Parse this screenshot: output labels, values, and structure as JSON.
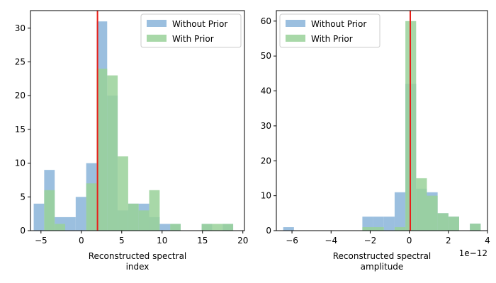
{
  "chart_data": [
    {
      "type": "histogram",
      "xlabel_lines": [
        "Reconstructed spectral",
        "index"
      ],
      "xlim": [
        -6.3,
        20.2
      ],
      "ylim": [
        0,
        32.6
      ],
      "xticks": [
        -5,
        0,
        5,
        10,
        15,
        20
      ],
      "yticks": [
        0,
        5,
        10,
        15,
        20,
        25,
        30
      ],
      "reference_line": {
        "x": 2.0,
        "color": "#e8201a"
      },
      "legend": {
        "position": "top-right",
        "entries": [
          "Without Prior",
          "With Prior"
        ]
      },
      "series": [
        {
          "name": "Without Prior",
          "color": "#8ab4d9",
          "bins": [
            {
              "x0": -5.9,
              "x1": -4.6,
              "count": 4
            },
            {
              "x0": -4.6,
              "x1": -3.3,
              "count": 9
            },
            {
              "x0": -3.3,
              "x1": -2.0,
              "count": 2
            },
            {
              "x0": -2.0,
              "x1": -0.7,
              "count": 2
            },
            {
              "x0": -0.7,
              "x1": 0.6,
              "count": 5
            },
            {
              "x0": 0.6,
              "x1": 1.9,
              "count": 10
            },
            {
              "x0": 1.9,
              "x1": 3.2,
              "count": 31
            },
            {
              "x0": 3.2,
              "x1": 4.5,
              "count": 20
            },
            {
              "x0": 4.5,
              "x1": 5.8,
              "count": 3
            },
            {
              "x0": 5.8,
              "x1": 7.1,
              "count": 4
            },
            {
              "x0": 7.1,
              "x1": 8.4,
              "count": 4
            },
            {
              "x0": 8.4,
              "x1": 9.7,
              "count": 2
            },
            {
              "x0": 9.7,
              "x1": 11.0,
              "count": 1
            },
            {
              "x0": 11.0,
              "x1": 12.3,
              "count": 1
            },
            {
              "x0": 14.9,
              "x1": 16.2,
              "count": 1
            },
            {
              "x0": 17.5,
              "x1": 18.8,
              "count": 1
            }
          ]
        },
        {
          "name": "With Prior",
          "color": "#99d199",
          "bins": [
            {
              "x0": -4.6,
              "x1": -3.3,
              "count": 6
            },
            {
              "x0": -3.3,
              "x1": -2.0,
              "count": 1
            },
            {
              "x0": 0.6,
              "x1": 1.9,
              "count": 7
            },
            {
              "x0": 1.9,
              "x1": 3.2,
              "count": 24
            },
            {
              "x0": 3.2,
              "x1": 4.5,
              "count": 23
            },
            {
              "x0": 4.5,
              "x1": 5.8,
              "count": 11
            },
            {
              "x0": 5.8,
              "x1": 7.1,
              "count": 4
            },
            {
              "x0": 7.1,
              "x1": 8.4,
              "count": 3
            },
            {
              "x0": 8.4,
              "x1": 9.7,
              "count": 6
            },
            {
              "x0": 11.0,
              "x1": 12.3,
              "count": 1
            },
            {
              "x0": 14.9,
              "x1": 16.2,
              "count": 1
            },
            {
              "x0": 16.2,
              "x1": 17.5,
              "count": 1
            },
            {
              "x0": 17.5,
              "x1": 18.8,
              "count": 1
            }
          ]
        }
      ]
    },
    {
      "type": "histogram",
      "xlabel_lines": [
        "Reconstructed spectral",
        "amplitude"
      ],
      "offset_text": "1e−12",
      "xlim": [
        -6.8,
        4.0
      ],
      "ylim": [
        0,
        63
      ],
      "xticks": [
        -6,
        -4,
        -2,
        0,
        2,
        4
      ],
      "yticks": [
        0,
        10,
        20,
        30,
        40,
        50,
        60
      ],
      "reference_line": {
        "x": 0.05,
        "color": "#e8201a"
      },
      "legend": {
        "position": "top-left",
        "entries": [
          "Without Prior",
          "With Prior"
        ]
      },
      "series": [
        {
          "name": "Without Prior",
          "color": "#8ab4d9",
          "bins": [
            {
              "x0": -6.45,
              "x1": -5.9,
              "count": 1
            },
            {
              "x0": -2.4,
              "x1": -1.85,
              "count": 4
            },
            {
              "x0": -1.85,
              "x1": -1.3,
              "count": 4
            },
            {
              "x0": -1.3,
              "x1": -0.75,
              "count": 4
            },
            {
              "x0": -0.75,
              "x1": -0.2,
              "count": 11
            },
            {
              "x0": -0.2,
              "x1": 0.35,
              "count": 42
            },
            {
              "x0": 0.35,
              "x1": 0.9,
              "count": 12
            },
            {
              "x0": 0.9,
              "x1": 1.45,
              "count": 11
            },
            {
              "x0": 1.45,
              "x1": 2.0,
              "count": 5
            },
            {
              "x0": 2.0,
              "x1": 2.55,
              "count": 4
            },
            {
              "x0": 3.1,
              "x1": 3.65,
              "count": 2
            }
          ]
        },
        {
          "name": "With Prior",
          "color": "#99d199",
          "bins": [
            {
              "x0": -2.4,
              "x1": -1.85,
              "count": 1
            },
            {
              "x0": -1.85,
              "x1": -1.3,
              "count": 1
            },
            {
              "x0": -0.75,
              "x1": -0.2,
              "count": 1
            },
            {
              "x0": -0.2,
              "x1": 0.35,
              "count": 60
            },
            {
              "x0": 0.35,
              "x1": 0.9,
              "count": 15
            },
            {
              "x0": 0.9,
              "x1": 1.45,
              "count": 10
            },
            {
              "x0": 1.45,
              "x1": 2.0,
              "count": 5
            },
            {
              "x0": 2.0,
              "x1": 2.55,
              "count": 4
            },
            {
              "x0": 3.1,
              "x1": 3.65,
              "count": 2
            }
          ]
        }
      ]
    }
  ]
}
